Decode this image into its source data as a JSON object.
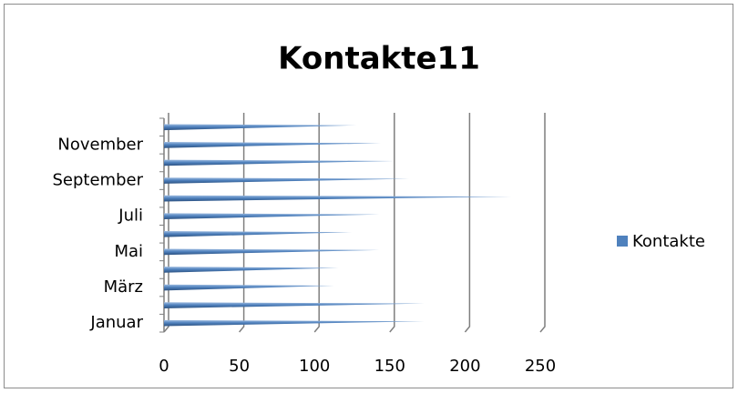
{
  "chart_data": {
    "type": "bar",
    "orientation": "horizontal",
    "title": "Kontakte11",
    "categories": [
      "Januar",
      null,
      "März",
      null,
      "Mai",
      null,
      "Juli",
      null,
      "September",
      null,
      "November",
      null
    ],
    "series": [
      {
        "name": "Kontakte",
        "color": "#4f81bd",
        "values": [
          170,
          170,
          110,
          113,
          140,
          122,
          140,
          228,
          160,
          150,
          141,
          125
        ]
      }
    ],
    "xlim": [
      0,
      250
    ],
    "xticks": [
      0,
      50,
      100,
      150,
      200,
      250
    ],
    "grid": true,
    "legend": "right"
  }
}
